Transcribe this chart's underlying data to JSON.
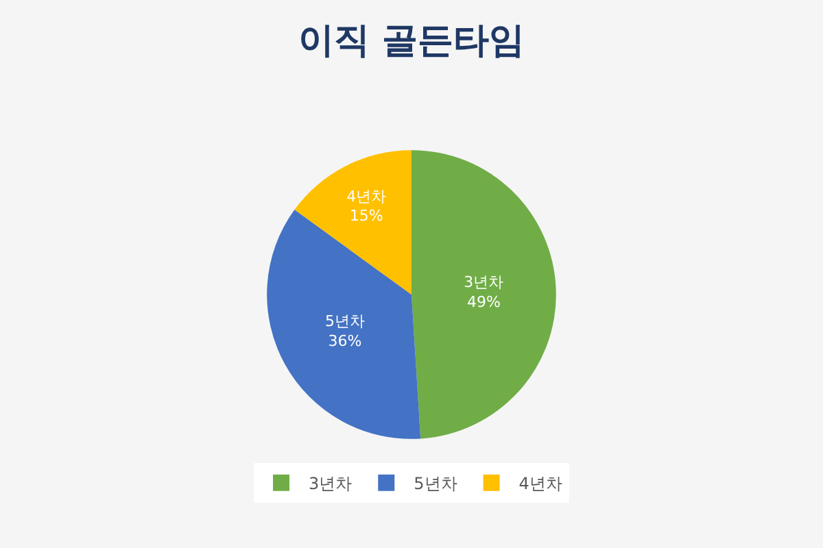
{
  "chart_data": {
    "type": "pie",
    "title": "이직 골든타임",
    "categories": [
      "3년차",
      "5년차",
      "4년차"
    ],
    "values": [
      49,
      36,
      15
    ],
    "colors": [
      "#70ad47",
      "#4472c4",
      "#ffc000"
    ],
    "value_labels": [
      "49%",
      "36%",
      "15%"
    ],
    "legend": "bottom"
  }
}
